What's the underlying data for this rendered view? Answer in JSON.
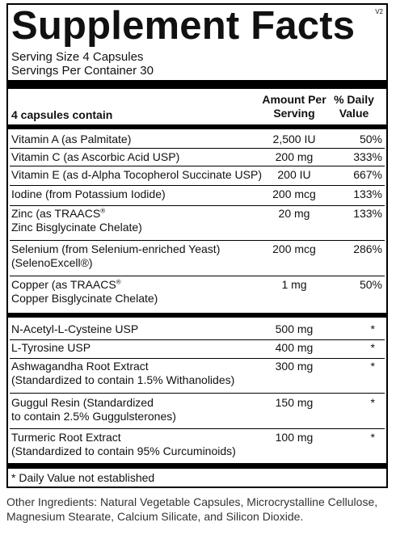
{
  "panel": {
    "title": "Supplement Facts",
    "version": "V2",
    "serving_size": "Serving Size 4 Capsules",
    "servings_per_container": "Servings Per Container 30",
    "header": {
      "col1": "4 capsules contain",
      "col2_line1": "Amount Per",
      "col2_line2": "Serving",
      "col3_line1": "% Daily",
      "col3_line2": "Value"
    },
    "vitamins": [
      {
        "name": "Vitamin A (as Palmitate)",
        "amount": "2,500 IU",
        "dv": "50%"
      },
      {
        "name": "Vitamin C (as Ascorbic Acid USP)",
        "amount": "200 mg",
        "dv": "333%"
      },
      {
        "name": "Vitamin E (as d-Alpha Tocopherol Succinate USP)",
        "amount": "200 IU",
        "dv": "667%"
      },
      {
        "name": "Iodine (from Potassium Iodide)",
        "amount": "200 mcg",
        "dv": "133%"
      },
      {
        "name": "Zinc (as TRAACS",
        "sup": "®",
        "name2": "Zinc Bisglycinate Chelate)",
        "amount": "20 mg",
        "dv": "133%"
      },
      {
        "name": "Selenium (from Selenium-enriched Yeast)",
        "name2": "(SelenoExcell®)",
        "amount": "200 mcg",
        "dv": "286%"
      },
      {
        "name": "Copper (as TRAACS",
        "sup": "®",
        "name2": "Copper Bisglycinate Chelate)",
        "amount": "1 mg",
        "dv": "50%"
      }
    ],
    "others": [
      {
        "name": "N-Acetyl-L-Cysteine USP",
        "amount": "500 mg",
        "dv": "*"
      },
      {
        "name": "L-Tyrosine USP",
        "amount": "400 mg",
        "dv": "*"
      },
      {
        "name": "Ashwagandha Root Extract",
        "name2": "(Standardized to contain 1.5% Withanolides)",
        "amount": "300 mg",
        "dv": "*"
      },
      {
        "name": "Guggul Resin (Standardized",
        "name2": "to contain 2.5% Guggulsterones)",
        "amount": "150 mg",
        "dv": "*"
      },
      {
        "name": "Turmeric Root Extract",
        "name2": "(Standardized to contain 95% Curcuminoids)",
        "amount": "100 mg",
        "dv": "*"
      }
    ],
    "footnote": "* Daily Value not established"
  },
  "other_ingredients": "Other Ingredients: Natural Vegetable Capsules, Microcrystalline Cellulose, Magnesium Stearate, Calcium Silicate, and Silicon Dioxide."
}
